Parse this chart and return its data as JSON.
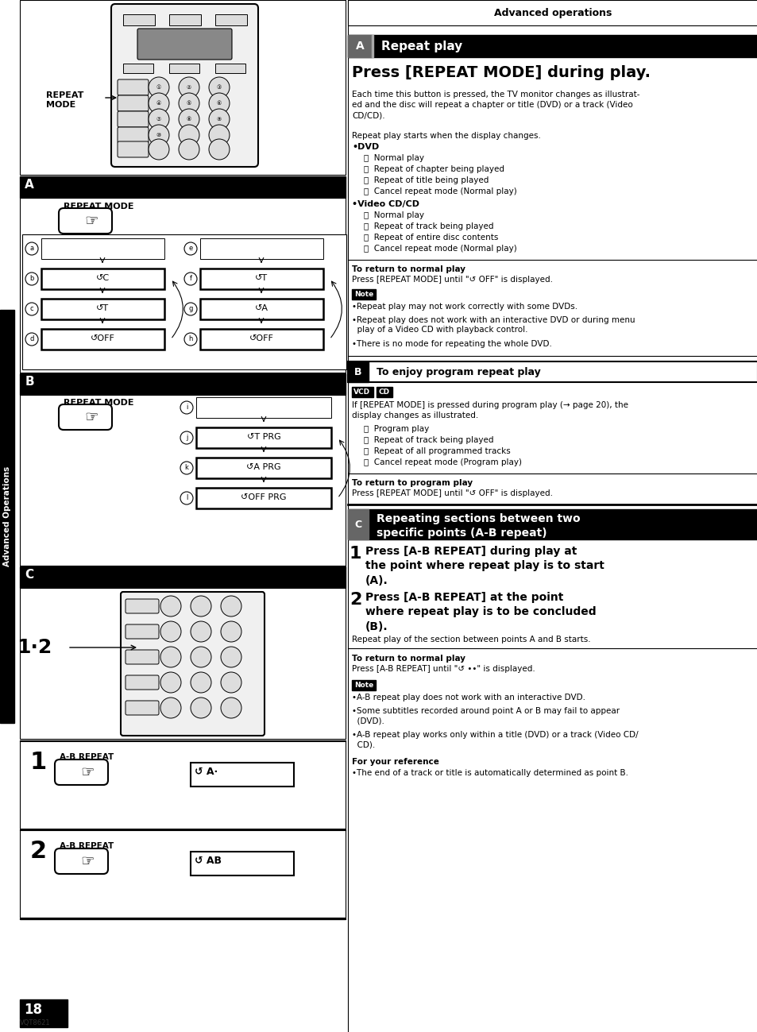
{
  "page_bg": "#ffffff",
  "header_text": "Advanced operations",
  "section_a_title": "Press [REPEAT MODE] during play.",
  "dvd_items": [
    "ⓐ  Normal play",
    "ⓑ  Repeat of chapter being played",
    "ⓒ  Repeat of title being played",
    "ⓓ  Cancel repeat mode (Normal play)"
  ],
  "videocd_items": [
    "ⓔ  Normal play",
    "ⓕ  Repeat of track being played",
    "ⓖ  Repeat of entire disc contents",
    "ⓗ  Cancel repeat mode (Normal play)"
  ],
  "section_b_items": [
    "ⓘ  Program play",
    "ⓙ  Repeat of track being played",
    "ⓚ  Repeat of all programmed tracks",
    "ⓘ  Cancel repeat mode (Program play)"
  ],
  "note_items": [
    "•Repeat play may not work correctly with some DVDs.",
    "•Repeat play does not work with an interactive DVD or during menu\n  play of a Video CD with playback control.",
    "•There is no mode for repeating the whole DVD."
  ],
  "note2_items": [
    "•A-B repeat play does not work with an interactive DVD.",
    "•Some subtitles recorded around point A or B may fail to appear\n  (DVD).",
    "•A-B repeat play works only within a title (DVD) or a track (Video CD/\n  CD)."
  ]
}
